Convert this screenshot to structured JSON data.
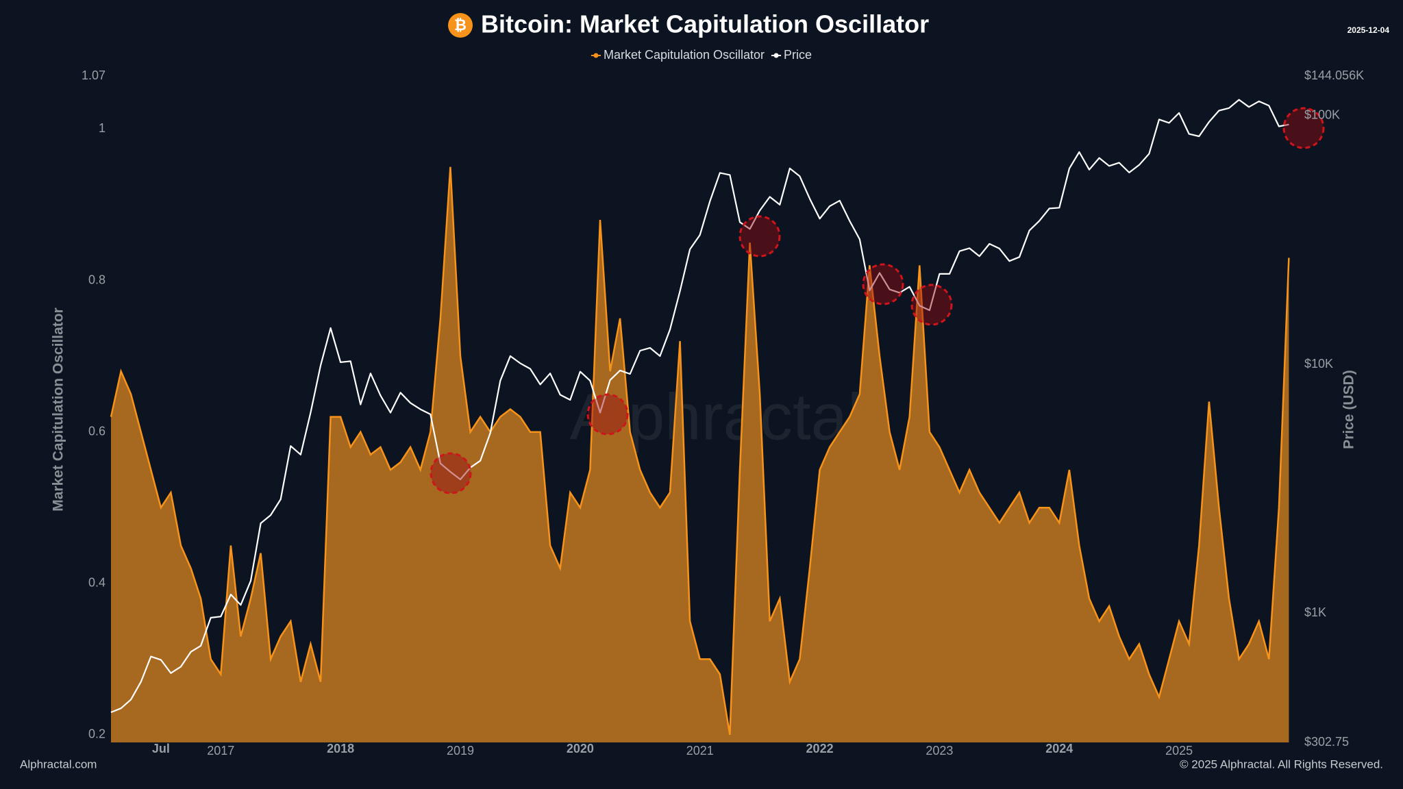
{
  "chart_data": {
    "type": "area",
    "title": "Bitcoin: Market Capitulation Oscillator",
    "title_icon": "₿",
    "date": "2025-12-04",
    "watermark": "Alphractal",
    "source": "Alphractal.com",
    "copyright": "© 2025 Alphractal. All Rights Reserved.",
    "y_label": "Market Capitulation Oscillator",
    "y2_label": "Price (USD)",
    "grid": false,
    "y2scale": "log",
    "ylim": [
      0.19,
      1.07
    ],
    "yticks": [
      0.2,
      0.4,
      0.6,
      0.8,
      1,
      1.07
    ],
    "y2lim": [
      302.75,
      144056
    ],
    "y2ticks": [
      {
        "value": 302.75,
        "label": "$302.75"
      },
      {
        "value": 1000,
        "label": "$1K"
      },
      {
        "value": 10000,
        "label": "$10K"
      },
      {
        "value": 100000,
        "label": "$100K"
      },
      {
        "value": 144056,
        "label": "$144.056K"
      }
    ],
    "xticks": [
      {
        "value": "2016-07",
        "label": "Jul"
      },
      {
        "value": "2017-01",
        "label": "2017"
      },
      {
        "value": "2018-01",
        "label": "2018"
      },
      {
        "value": "2019-01",
        "label": "2019"
      },
      {
        "value": "2020-01",
        "label": "2020"
      },
      {
        "value": "2021-01",
        "label": "2021"
      },
      {
        "value": "2022-01",
        "label": "2022"
      },
      {
        "value": "2023-01",
        "label": "2023"
      },
      {
        "value": "2024-01",
        "label": "2024"
      },
      {
        "value": "2025-01",
        "label": "2025"
      }
    ],
    "x": [
      "2016-02",
      "2016-03",
      "2016-04",
      "2016-05",
      "2016-06",
      "2016-07",
      "2016-08",
      "2016-09",
      "2016-10",
      "2016-11",
      "2016-12",
      "2017-01",
      "2017-02",
      "2017-03",
      "2017-04",
      "2017-05",
      "2017-06",
      "2017-07",
      "2017-08",
      "2017-09",
      "2017-10",
      "2017-11",
      "2017-12",
      "2018-01",
      "2018-02",
      "2018-03",
      "2018-04",
      "2018-05",
      "2018-06",
      "2018-07",
      "2018-08",
      "2018-09",
      "2018-10",
      "2018-11",
      "2018-12",
      "2019-01",
      "2019-02",
      "2019-03",
      "2019-04",
      "2019-05",
      "2019-06",
      "2019-07",
      "2019-08",
      "2019-09",
      "2019-10",
      "2019-11",
      "2019-12",
      "2020-01",
      "2020-02",
      "2020-03",
      "2020-04",
      "2020-05",
      "2020-06",
      "2020-07",
      "2020-08",
      "2020-09",
      "2020-10",
      "2020-11",
      "2020-12",
      "2021-01",
      "2021-02",
      "2021-03",
      "2021-04",
      "2021-05",
      "2021-06",
      "2021-07",
      "2021-08",
      "2021-09",
      "2021-10",
      "2021-11",
      "2021-12",
      "2022-01",
      "2022-02",
      "2022-03",
      "2022-04",
      "2022-05",
      "2022-06",
      "2022-07",
      "2022-08",
      "2022-09",
      "2022-10",
      "2022-11",
      "2022-12",
      "2023-01",
      "2023-02",
      "2023-03",
      "2023-04",
      "2023-05",
      "2023-06",
      "2023-07",
      "2023-08",
      "2023-09",
      "2023-10",
      "2023-11",
      "2023-12",
      "2024-01",
      "2024-02",
      "2024-03",
      "2024-04",
      "2024-05",
      "2024-06",
      "2024-07",
      "2024-08",
      "2024-09",
      "2024-10",
      "2024-11",
      "2024-12",
      "2025-01",
      "2025-02",
      "2025-03",
      "2025-04",
      "2025-05",
      "2025-06",
      "2025-07",
      "2025-08",
      "2025-09",
      "2025-10",
      "2025-11",
      "2025-12"
    ],
    "series": [
      {
        "name": "Market Capitulation Oscillator",
        "type": "area",
        "color": "#f7931a",
        "fill": "#b06d20",
        "values": [
          0.62,
          0.68,
          0.65,
          0.6,
          0.55,
          0.5,
          0.52,
          0.45,
          0.42,
          0.38,
          0.3,
          0.28,
          0.45,
          0.33,
          0.38,
          0.44,
          0.3,
          0.33,
          0.35,
          0.27,
          0.32,
          0.27,
          0.62,
          0.62,
          0.58,
          0.6,
          0.57,
          0.58,
          0.55,
          0.56,
          0.58,
          0.55,
          0.6,
          0.75,
          0.95,
          0.7,
          0.6,
          0.62,
          0.6,
          0.62,
          0.63,
          0.62,
          0.6,
          0.6,
          0.45,
          0.42,
          0.52,
          0.5,
          0.55,
          0.88,
          0.68,
          0.75,
          0.6,
          0.55,
          0.52,
          0.5,
          0.52,
          0.72,
          0.35,
          0.3,
          0.3,
          0.28,
          0.2,
          0.55,
          0.85,
          0.65,
          0.35,
          0.38,
          0.27,
          0.3,
          0.42,
          0.55,
          0.58,
          0.6,
          0.62,
          0.65,
          0.82,
          0.7,
          0.6,
          0.55,
          0.62,
          0.82,
          0.6,
          0.58,
          0.55,
          0.52,
          0.55,
          0.52,
          0.5,
          0.48,
          0.5,
          0.52,
          0.48,
          0.5,
          0.5,
          0.48,
          0.55,
          0.45,
          0.38,
          0.35,
          0.37,
          0.33,
          0.3,
          0.32,
          0.28,
          0.25,
          0.3,
          0.35,
          0.32,
          0.45,
          0.64,
          0.5,
          0.38,
          0.3,
          0.32,
          0.35,
          0.3,
          0.5,
          0.83
        ]
      },
      {
        "name": "Price",
        "type": "line",
        "axis": "y2",
        "color": "#ffffff",
        "values": [
          400,
          415,
          450,
          530,
          670,
          650,
          575,
          610,
          700,
          740,
          960,
          970,
          1190,
          1080,
          1350,
          2300,
          2480,
          2870,
          4700,
          4340,
          6400,
          9900,
          14000,
          10200,
          10300,
          6900,
          9200,
          7500,
          6400,
          7700,
          7000,
          6600,
          6300,
          4000,
          3700,
          3450,
          3850,
          4100,
          5300,
          8600,
          10800,
          10100,
          9600,
          8300,
          9200,
          7550,
          7200,
          9350,
          8600,
          6400,
          8650,
          9450,
          9150,
          11350,
          11650,
          10800,
          13800,
          19700,
          29000,
          33100,
          45200,
          58800,
          57700,
          37300,
          35000,
          41500,
          47100,
          43800,
          61300,
          57000,
          46300,
          38500,
          43200,
          45500,
          37700,
          31800,
          19800,
          23300,
          20000,
          19400,
          20500,
          17200,
          16500,
          23100,
          23100,
          28500,
          29300,
          27200,
          30500,
          29200,
          26000,
          27000,
          34500,
          37700,
          42300,
          42600,
          61200,
          71300,
          60600,
          67500,
          62700,
          64600,
          59000,
          63300,
          70200,
          96400,
          93400,
          102400,
          84300,
          82500,
          94200,
          104600,
          107100,
          115700,
          108200,
          114000,
          109500,
          90400,
          92000
        ]
      }
    ]
  }
}
